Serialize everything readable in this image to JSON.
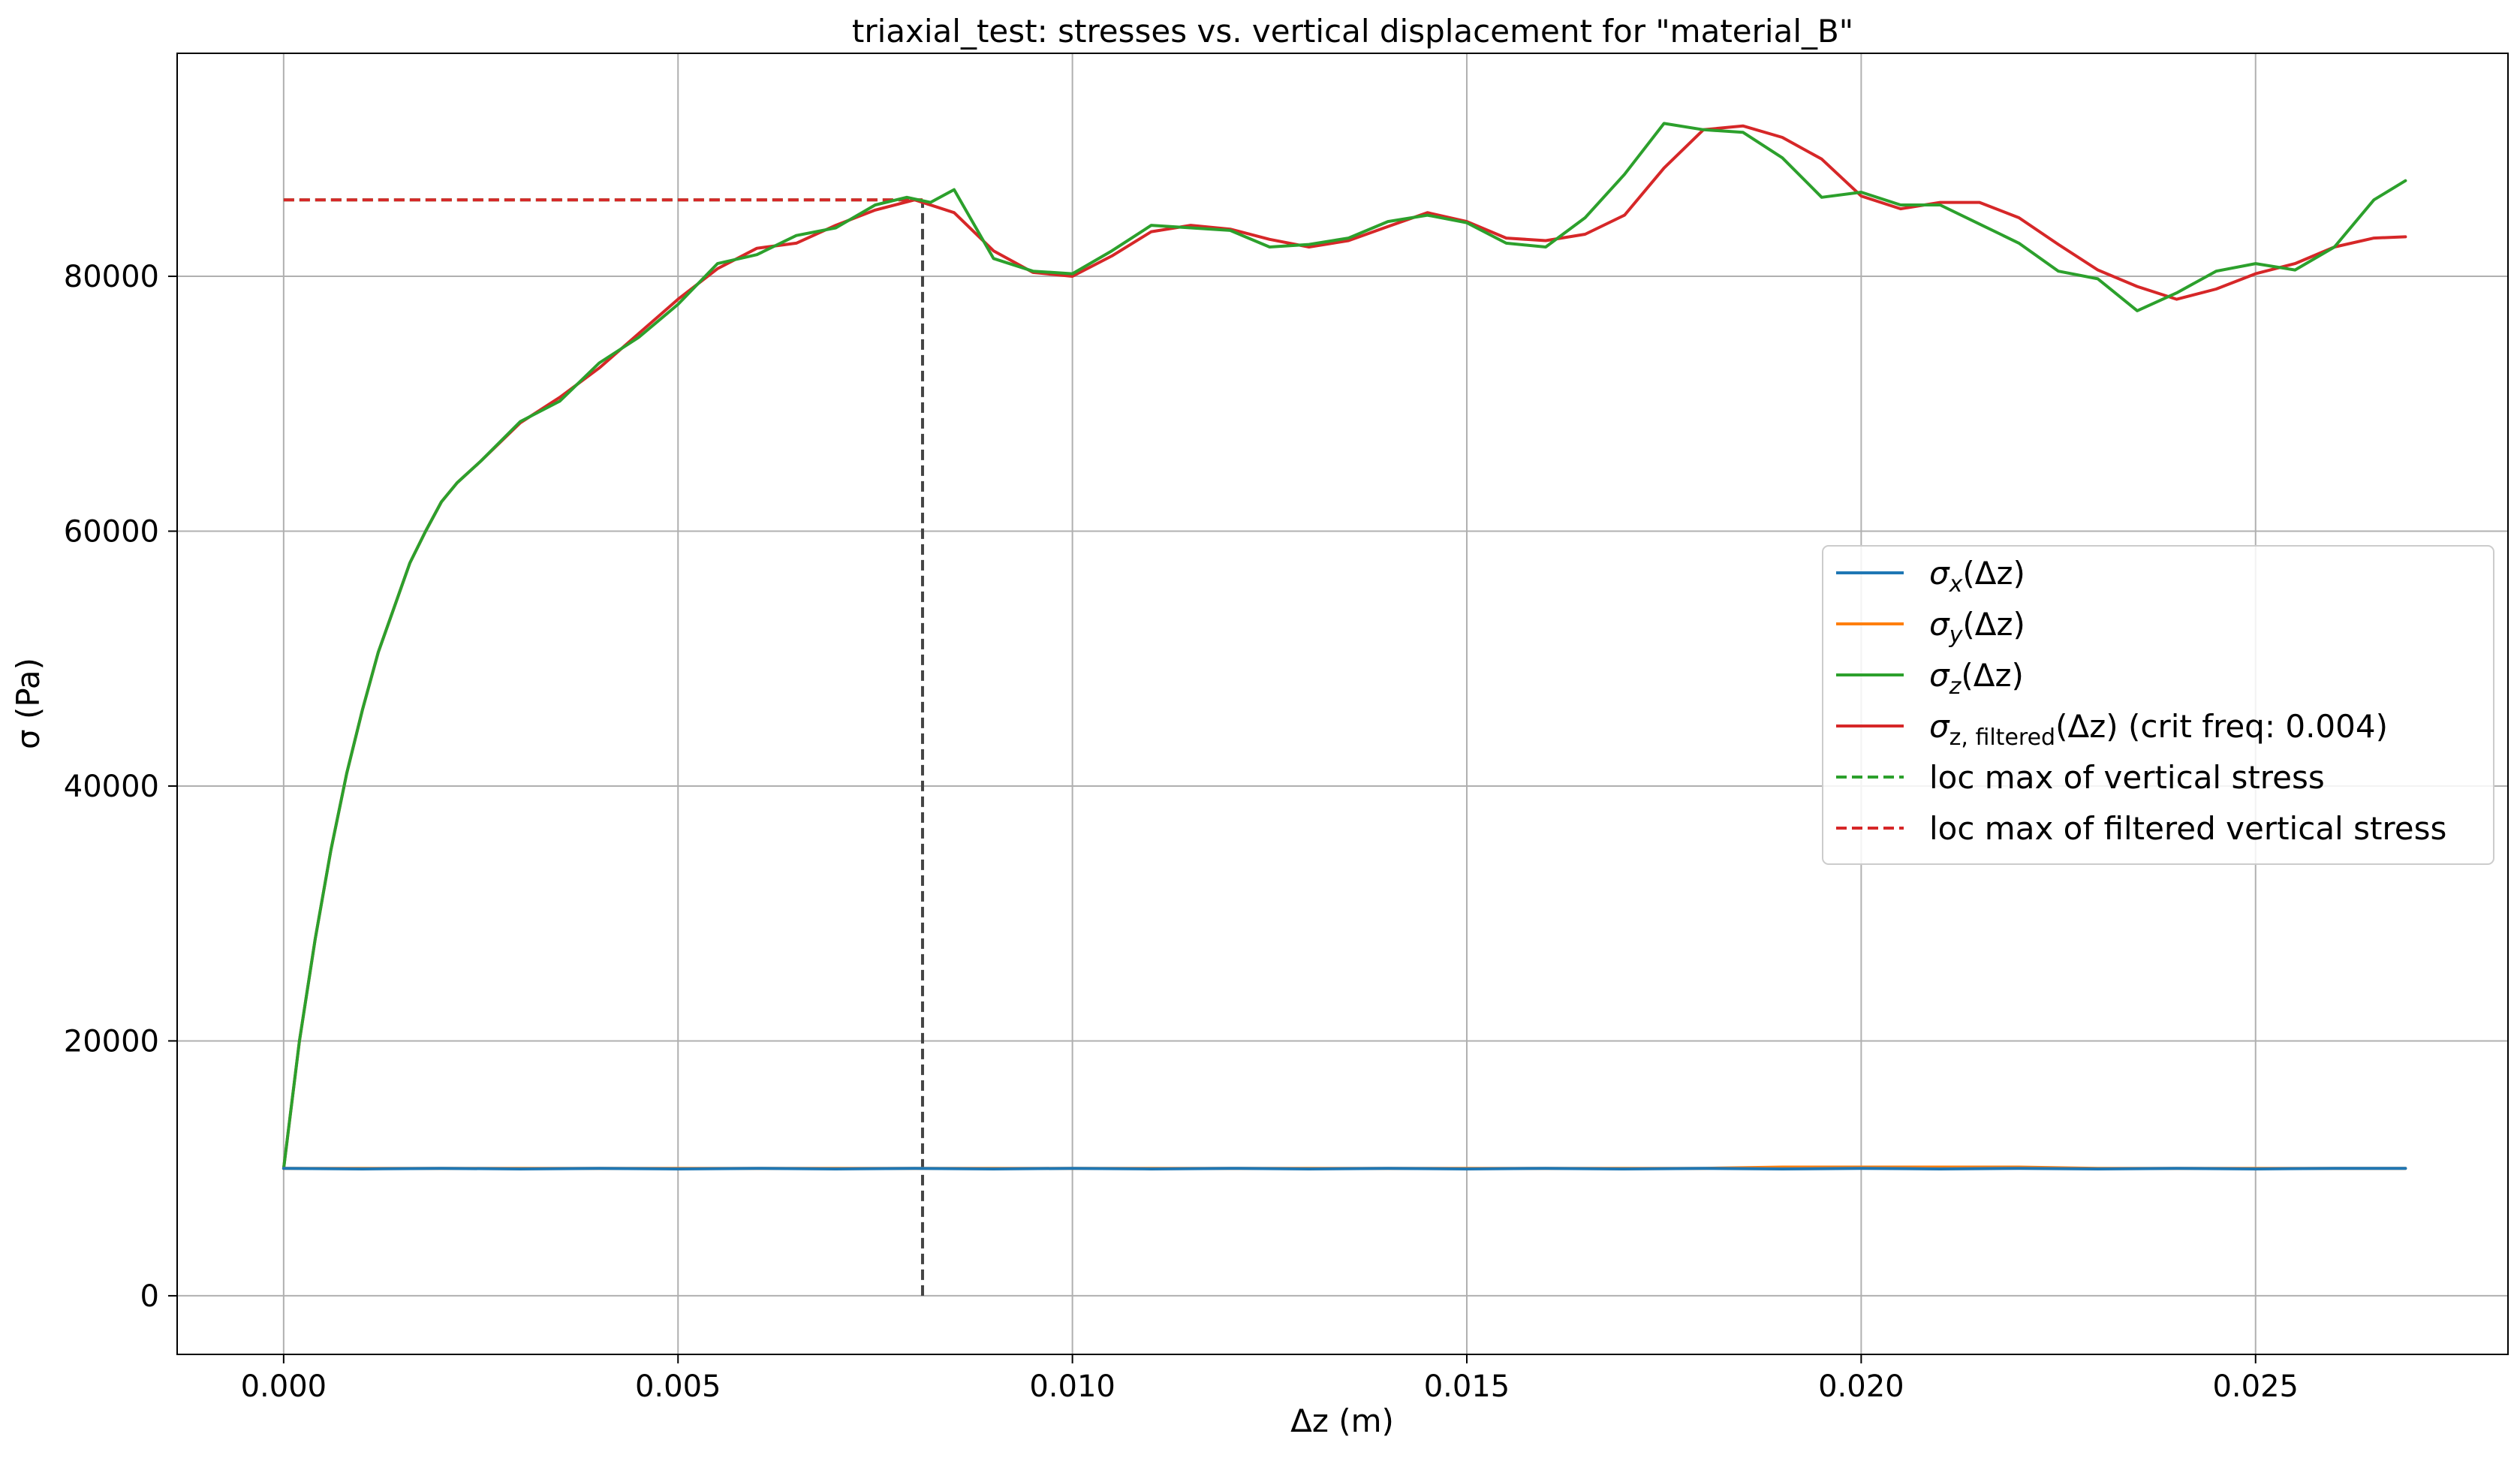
{
  "chart_data": {
    "type": "line",
    "title": "triaxial_test: stresses vs. vertical displacement for \"material_B\"",
    "xlabel": "Δz (m)",
    "ylabel": "σ (Pa)",
    "xlim": [
      -0.00135,
      0.0282
    ],
    "ylim": [
      -4600,
      97500
    ],
    "x_ticks": [
      0.0,
      0.005,
      0.01,
      0.015,
      0.02,
      0.025
    ],
    "x_tick_labels": [
      "0.000",
      "0.005",
      "0.010",
      "0.015",
      "0.020",
      "0.025"
    ],
    "y_ticks": [
      0,
      20000,
      40000,
      60000,
      80000
    ],
    "y_tick_labels": [
      "0",
      "20000",
      "40000",
      "60000",
      "80000"
    ],
    "grid": true,
    "legend_position": "center-right",
    "legend": [
      {
        "base": "σ",
        "sub": "x",
        "tail": "(Δz)",
        "color": "#1f77b4",
        "dash": false
      },
      {
        "base": "σ",
        "sub": "y",
        "tail": "(Δz)",
        "color": "#ff7f0e",
        "dash": false
      },
      {
        "base": "σ",
        "sub": "z",
        "tail": "(Δz)",
        "color": "#2ca02c",
        "dash": false
      },
      {
        "base": "σ",
        "sub": "z, filtered",
        "tail": "(Δz) (crit freq: 0.004)",
        "color": "#d62728",
        "dash": false
      },
      {
        "base": "",
        "sub": "",
        "tail": "loc max of vertical stress",
        "color": "#2ca02c",
        "dash": true
      },
      {
        "base": "",
        "sub": "",
        "tail": "loc max of filtered vertical stress",
        "color": "#d62728",
        "dash": true
      }
    ],
    "series": [
      {
        "name": "σz,filtered(Δz) (crit freq: 0.004)",
        "color": "#d62728",
        "x": [
          0.0,
          0.0002,
          0.0004,
          0.0006,
          0.0008,
          0.001,
          0.0012,
          0.0014,
          0.0016,
          0.0018,
          0.002,
          0.0022,
          0.0025,
          0.003,
          0.0035,
          0.004,
          0.0045,
          0.005,
          0.0055,
          0.006,
          0.0065,
          0.007,
          0.0075,
          0.008,
          0.0085,
          0.009,
          0.0095,
          0.01,
          0.0105,
          0.011,
          0.0115,
          0.012,
          0.0125,
          0.013,
          0.0135,
          0.014,
          0.0145,
          0.015,
          0.0155,
          0.016,
          0.0165,
          0.017,
          0.0175,
          0.018,
          0.0185,
          0.019,
          0.0195,
          0.02,
          0.0205,
          0.021,
          0.0215,
          0.022,
          0.0225,
          0.023,
          0.0235,
          0.024,
          0.0245,
          0.025,
          0.0255,
          0.026,
          0.0265,
          0.0269
        ],
        "y": [
          10000,
          20000,
          28000,
          35000,
          41000,
          46000,
          50500,
          54000,
          57500,
          60000,
          62300,
          63800,
          65500,
          68500,
          70500,
          72800,
          75500,
          78200,
          80600,
          82200,
          82600,
          84000,
          85200,
          86000,
          85000,
          82000,
          80300,
          80000,
          81600,
          83500,
          84000,
          83700,
          82900,
          82300,
          82800,
          83900,
          85000,
          84300,
          83000,
          82800,
          83300,
          84800,
          88500,
          91500,
          91800,
          90900,
          89200,
          86300,
          85300,
          85800,
          85800,
          84600,
          82500,
          80500,
          79200,
          78200,
          79000,
          80200,
          81000,
          82300,
          83000,
          83100
        ]
      },
      {
        "name": "σz(Δz)",
        "color": "#2ca02c",
        "x": [
          0.0,
          0.0002,
          0.0004,
          0.0006,
          0.0008,
          0.001,
          0.0012,
          0.0014,
          0.0016,
          0.0018,
          0.002,
          0.0022,
          0.0025,
          0.003,
          0.0035,
          0.004,
          0.0045,
          0.005,
          0.0055,
          0.006,
          0.0065,
          0.007,
          0.0075,
          0.0079,
          0.0082,
          0.0085,
          0.009,
          0.0095,
          0.01,
          0.0105,
          0.011,
          0.0115,
          0.012,
          0.0125,
          0.013,
          0.0135,
          0.014,
          0.0145,
          0.015,
          0.0155,
          0.016,
          0.0165,
          0.017,
          0.0175,
          0.018,
          0.0185,
          0.019,
          0.0195,
          0.02,
          0.0205,
          0.021,
          0.0215,
          0.022,
          0.0225,
          0.023,
          0.0235,
          0.024,
          0.0245,
          0.025,
          0.0255,
          0.026,
          0.0265,
          0.0269
        ],
        "y": [
          10000,
          20000,
          28000,
          35000,
          41000,
          46000,
          50500,
          54000,
          57500,
          60000,
          62300,
          63800,
          65500,
          68600,
          70200,
          73200,
          75200,
          77800,
          81000,
          81700,
          83200,
          83800,
          85600,
          86200,
          85800,
          86800,
          81400,
          80400,
          80200,
          82000,
          84000,
          83800,
          83600,
          82300,
          82500,
          83000,
          84300,
          84800,
          84200,
          82600,
          82300,
          84600,
          88000,
          92000,
          91500,
          91300,
          89300,
          86200,
          86600,
          85600,
          85600,
          84100,
          82600,
          80400,
          79800,
          77300,
          78700,
          80400,
          81000,
          80500,
          82300,
          86000,
          87500
        ]
      },
      {
        "name": "σy(Δz)",
        "color": "#ff7f0e",
        "x": [
          0.0,
          0.001,
          0.002,
          0.003,
          0.004,
          0.005,
          0.006,
          0.007,
          0.008,
          0.009,
          0.01,
          0.011,
          0.012,
          0.013,
          0.014,
          0.015,
          0.016,
          0.017,
          0.018,
          0.019,
          0.02,
          0.021,
          0.022,
          0.023,
          0.024,
          0.025,
          0.026,
          0.0269
        ],
        "y": [
          10000,
          10000,
          10000,
          10000,
          10000,
          10000,
          10000,
          10000,
          10000,
          10000,
          10000,
          10000,
          10000,
          10000,
          10000,
          10000,
          10000,
          10000,
          10000,
          10100,
          10100,
          10100,
          10100,
          10000,
          10000,
          10000,
          10000,
          10000
        ]
      },
      {
        "name": "σx(Δz)",
        "color": "#1f77b4",
        "x": [
          0.0,
          0.001,
          0.002,
          0.003,
          0.004,
          0.005,
          0.006,
          0.007,
          0.008,
          0.009,
          0.01,
          0.011,
          0.012,
          0.013,
          0.014,
          0.015,
          0.016,
          0.017,
          0.018,
          0.019,
          0.02,
          0.021,
          0.022,
          0.023,
          0.024,
          0.025,
          0.026,
          0.0269
        ],
        "y": [
          10000,
          9950,
          10000,
          9950,
          10000,
          9950,
          10000,
          9950,
          10000,
          9950,
          10000,
          9950,
          10000,
          9950,
          10000,
          9950,
          10000,
          9950,
          10000,
          9950,
          10000,
          9950,
          10000,
          9950,
          10000,
          9950,
          10000,
          10000
        ]
      }
    ],
    "annotations": [
      {
        "kind": "hline",
        "name": "loc max of vertical stress",
        "y": 86000,
        "x_from": 0.0,
        "x_to": 0.0081,
        "color": "#2ca02c",
        "dash": true
      },
      {
        "kind": "hline",
        "name": "loc max of filtered vertical stress",
        "y": 86000,
        "x_from": 0.0,
        "x_to": 0.0081,
        "color": "#d62728",
        "dash": true
      },
      {
        "kind": "vline",
        "x": 0.0081,
        "y_from": 0,
        "y_to": 86000,
        "color": "#444444",
        "dash": true
      }
    ]
  }
}
